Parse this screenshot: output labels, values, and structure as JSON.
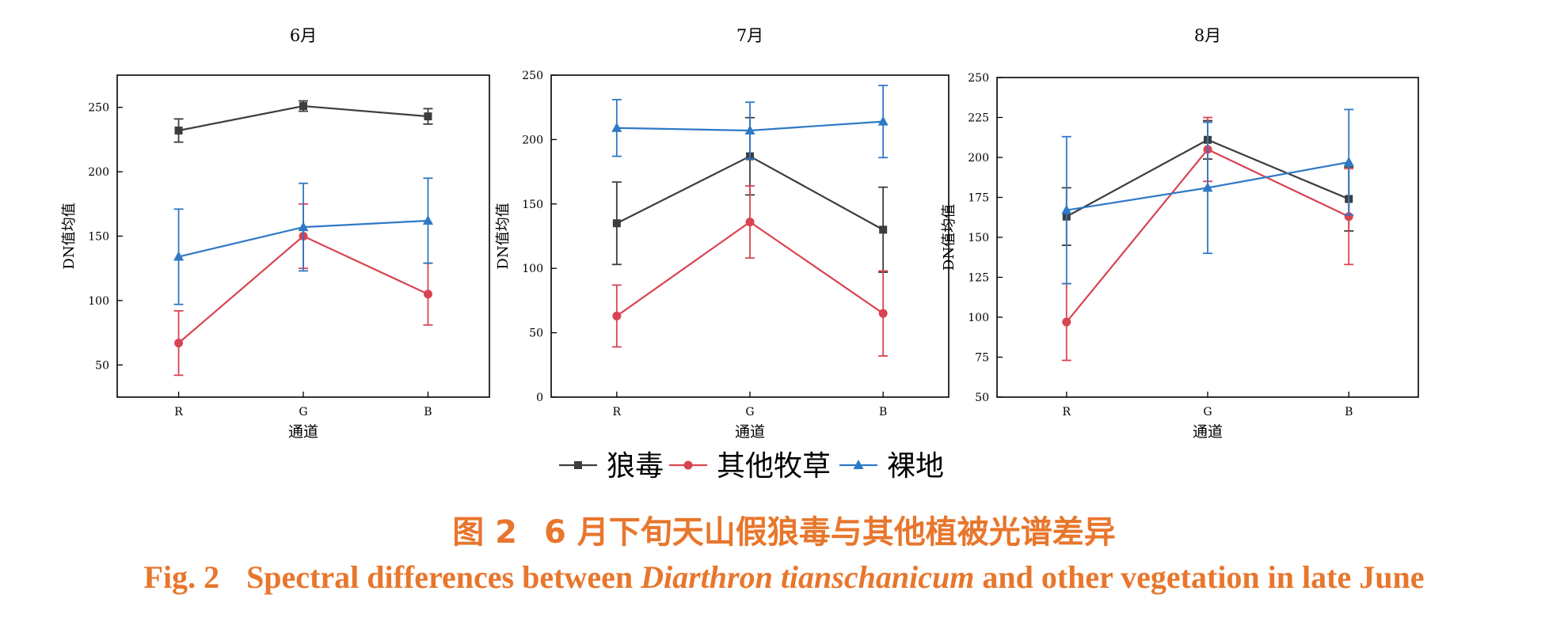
{
  "colors": {
    "series": [
      "#3d3d3d",
      "#d94452",
      "#2f79c6"
    ],
    "caption": "#e8762c",
    "axis": "#000000"
  },
  "legend": {
    "labels": [
      "狼毒",
      "其他牧草",
      "裸地"
    ],
    "markers": [
      "square",
      "circle",
      "triangle"
    ],
    "placement": "bottom-center"
  },
  "caption": {
    "cn_label": "图 2",
    "cn_text": "6 月下旬天山假狼毒与其他植被光谱差异",
    "en_label": "Fig. 2",
    "en_text_1": "Spectral differences between",
    "en_species": "Diarthron tianschanicum",
    "en_text_2": "and other vegetation in late June"
  },
  "chart_data": [
    {
      "type": "line",
      "title": "6月",
      "xlabel": "通道",
      "ylabel": "DN值均值",
      "categories": [
        "R",
        "G",
        "B"
      ],
      "ylim": [
        25,
        275
      ],
      "yticks": [
        50,
        100,
        150,
        200,
        250
      ],
      "grid": false,
      "series": [
        {
          "name": "狼毒",
          "values": [
            232,
            251,
            243
          ],
          "errors": [
            9,
            4,
            6
          ]
        },
        {
          "name": "其他牧草",
          "values": [
            67,
            150,
            105
          ],
          "errors": [
            25,
            25,
            24
          ]
        },
        {
          "name": "裸地",
          "values": [
            134,
            157,
            162
          ],
          "errors": [
            37,
            34,
            33
          ]
        }
      ]
    },
    {
      "type": "line",
      "title": "7月",
      "xlabel": "通道",
      "ylabel": "DN值均值",
      "categories": [
        "R",
        "G",
        "B"
      ],
      "ylim": [
        0,
        250
      ],
      "yticks": [
        0,
        50,
        100,
        150,
        200,
        250
      ],
      "grid": false,
      "series": [
        {
          "name": "狼毒",
          "values": [
            135,
            187,
            130
          ],
          "errors": [
            32,
            30,
            33
          ]
        },
        {
          "name": "其他牧草",
          "values": [
            63,
            136,
            65
          ],
          "errors": [
            24,
            28,
            33
          ]
        },
        {
          "name": "裸地",
          "values": [
            209,
            207,
            214
          ],
          "errors": [
            22,
            22,
            28
          ]
        }
      ]
    },
    {
      "type": "line",
      "title": "8月",
      "xlabel": "通道",
      "ylabel": "DN值均值",
      "categories": [
        "R",
        "G",
        "B"
      ],
      "ylim": [
        50,
        250
      ],
      "yticks": [
        50,
        75,
        100,
        125,
        150,
        175,
        200,
        225,
        250
      ],
      "grid": false,
      "series": [
        {
          "name": "狼毒",
          "values": [
            163,
            211,
            174
          ],
          "errors": [
            18,
            12,
            20
          ]
        },
        {
          "name": "其他牧草",
          "values": [
            97,
            205,
            163
          ],
          "errors": [
            24,
            20,
            30
          ]
        },
        {
          "name": "裸地",
          "values": [
            167,
            181,
            197
          ],
          "errors": [
            46,
            41,
            33
          ]
        }
      ]
    }
  ]
}
